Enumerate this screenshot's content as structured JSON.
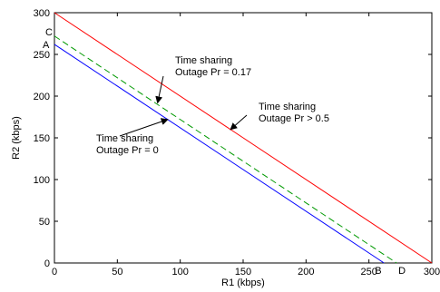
{
  "chart_data": {
    "type": "line",
    "xlabel": "R1 (kbps)",
    "ylabel": "R2 (kbps)",
    "xlim": [
      0,
      300
    ],
    "ylim": [
      0,
      300
    ],
    "xticks": [
      0,
      50,
      100,
      150,
      200,
      250,
      300
    ],
    "yticks": [
      0,
      50,
      100,
      150,
      200,
      250,
      300
    ],
    "grid": false,
    "series": [
      {
        "color": "#ff0000",
        "style": "solid",
        "x": [
          0,
          300
        ],
        "y": [
          300,
          0
        ]
      },
      {
        "color": "#009900",
        "style": "dashed",
        "x": [
          0,
          272
        ],
        "y": [
          272,
          0
        ]
      },
      {
        "color": "#0000ff",
        "style": "solid",
        "x": [
          0,
          262
        ],
        "y": [
          262,
          0
        ]
      }
    ],
    "points": [
      {
        "label": "C",
        "x": 0,
        "y": 272
      },
      {
        "label": "A",
        "x": 0,
        "y": 262
      },
      {
        "label": "B",
        "x": 262,
        "y": 0
      },
      {
        "label": "D",
        "x": 272,
        "y": 0
      }
    ],
    "annotations": [
      {
        "lines": [
          "Time sharing",
          "Outage Pr = 0.17"
        ],
        "arrow_to": {
          "x": 82,
          "y": 192
        }
      },
      {
        "lines": [
          "Time sharing",
          "Outage Pr > 0.5"
        ],
        "arrow_to": {
          "x": 140,
          "y": 160
        }
      },
      {
        "lines": [
          "Time sharing",
          "Outage Pr = 0"
        ],
        "arrow_to": {
          "x": 90,
          "y": 172
        }
      }
    ]
  }
}
